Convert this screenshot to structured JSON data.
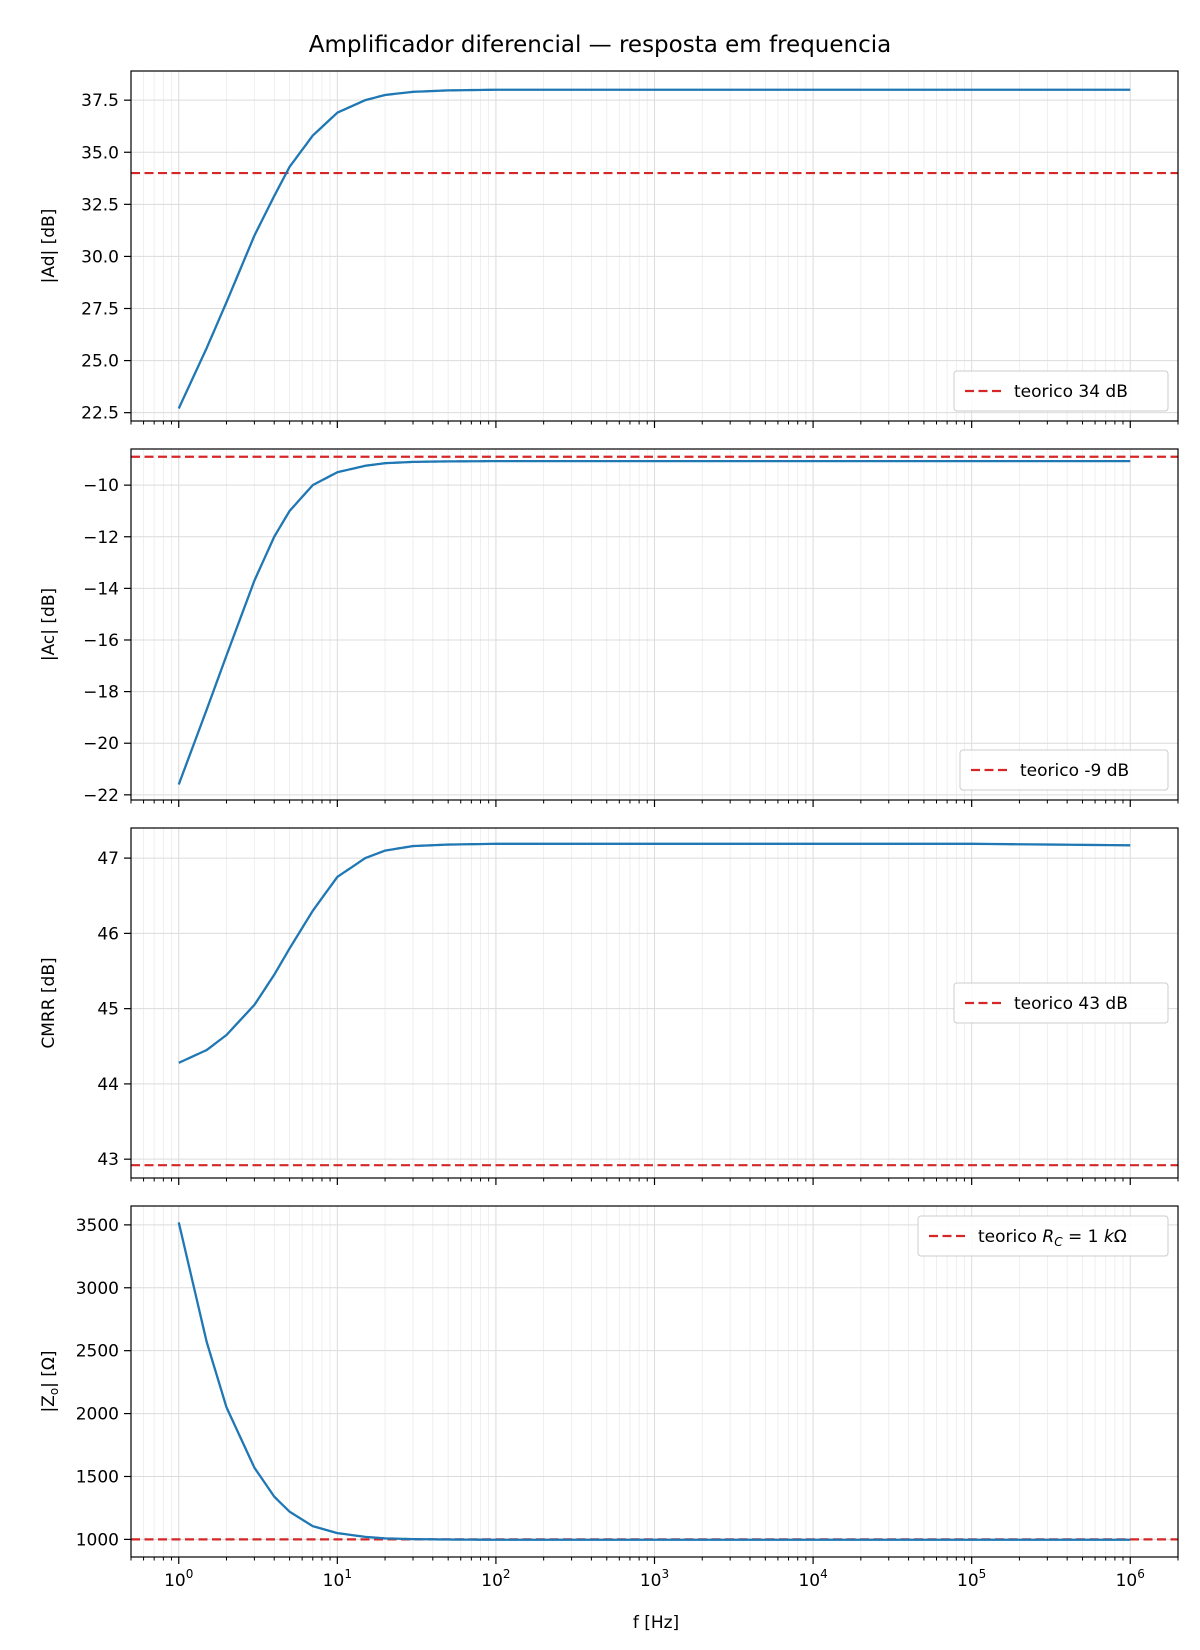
{
  "figure": {
    "suptitle": "Amplificador diferencial — resposta em frequencia",
    "xlabel": "f [Hz]",
    "x_ticks": [
      "10⁰",
      "10¹",
      "10²",
      "10³",
      "10⁴",
      "10⁵",
      "10⁶"
    ]
  },
  "colors": {
    "series": "#1f77b4",
    "reference": "#d62728",
    "grid": "#dcdcdc",
    "axes": "#000000"
  },
  "chart_data": [
    {
      "type": "line",
      "ylabel": "|Ad| [dB]",
      "xscale": "log",
      "xlim": [
        0.5,
        2000000
      ],
      "ylim": [
        22.1,
        38.9
      ],
      "yticks": [
        22.5,
        25.0,
        27.5,
        30.0,
        32.5,
        35.0,
        37.5
      ],
      "yticklabels": [
        "22.5",
        "25.0",
        "27.5",
        "30.0",
        "32.5",
        "35.0",
        "37.5"
      ],
      "grid": true,
      "legend_position": "lower right",
      "x": [
        1,
        1.5,
        2,
        3,
        4,
        5,
        7,
        10,
        15,
        20,
        30,
        50,
        100,
        1000,
        10000,
        100000,
        1000000
      ],
      "y": [
        22.7,
        25.6,
        27.8,
        31.0,
        32.9,
        34.3,
        35.8,
        36.9,
        37.5,
        37.75,
        37.9,
        37.97,
        38.0,
        38.0,
        38.0,
        38.0,
        38.0
      ],
      "reference": {
        "label": "teorico 34 dB",
        "y": 34
      }
    },
    {
      "type": "line",
      "ylabel": "|Ac| [dB]",
      "xscale": "log",
      "xlim": [
        0.5,
        2000000
      ],
      "ylim": [
        -22.2,
        -8.6
      ],
      "yticks": [
        -22,
        -20,
        -18,
        -16,
        -14,
        -12,
        -10
      ],
      "yticklabels": [
        "−22",
        "−20",
        "−18",
        "−16",
        "−14",
        "−12",
        "−10"
      ],
      "grid": true,
      "legend_position": "lower right",
      "x": [
        1,
        1.5,
        2,
        3,
        4,
        5,
        7,
        10,
        15,
        20,
        30,
        50,
        100,
        1000,
        10000,
        100000,
        1000000
      ],
      "y": [
        -21.6,
        -18.7,
        -16.6,
        -13.7,
        -12.0,
        -11.0,
        -10.0,
        -9.5,
        -9.25,
        -9.15,
        -9.1,
        -9.08,
        -9.07,
        -9.07,
        -9.07,
        -9.07,
        -9.07
      ],
      "reference": {
        "label": "teorico -9 dB",
        "y": -8.9
      }
    },
    {
      "type": "line",
      "ylabel": "CMRR [dB]",
      "xscale": "log",
      "xlim": [
        0.5,
        2000000
      ],
      "ylim": [
        42.75,
        47.4
      ],
      "yticks": [
        43,
        44,
        45,
        46,
        47
      ],
      "yticklabels": [
        "43",
        "44",
        "45",
        "46",
        "47"
      ],
      "grid": true,
      "legend_position": "center right",
      "x": [
        1,
        1.5,
        2,
        3,
        4,
        5,
        7,
        10,
        15,
        20,
        30,
        50,
        100,
        1000,
        10000,
        100000,
        1000000
      ],
      "y": [
        44.28,
        44.45,
        44.65,
        45.05,
        45.45,
        45.8,
        46.3,
        46.75,
        47.0,
        47.1,
        47.16,
        47.18,
        47.19,
        47.19,
        47.19,
        47.19,
        47.17
      ],
      "reference": {
        "label": "teorico 43 dB",
        "y": 42.92
      }
    },
    {
      "type": "line",
      "ylabel": "|Zo| [Ω]",
      "xscale": "log",
      "xlim": [
        0.5,
        2000000
      ],
      "ylim": [
        860,
        3650
      ],
      "yticks": [
        1000,
        1500,
        2000,
        2500,
        3000,
        3500
      ],
      "yticklabels": [
        "1000",
        "1500",
        "2000",
        "2500",
        "3000",
        "3500"
      ],
      "grid": true,
      "legend_position": "upper right",
      "x": [
        1,
        1.5,
        2,
        3,
        4,
        5,
        7,
        10,
        15,
        20,
        30,
        50,
        100,
        1000,
        10000,
        100000,
        1000000
      ],
      "y": [
        3520,
        2570,
        2050,
        1570,
        1340,
        1220,
        1105,
        1050,
        1020,
        1008,
        1002,
        999,
        997,
        997,
        997,
        997,
        997
      ],
      "reference": {
        "label": "teorico R_C = 1 kΩ",
        "y": 1000
      }
    }
  ]
}
